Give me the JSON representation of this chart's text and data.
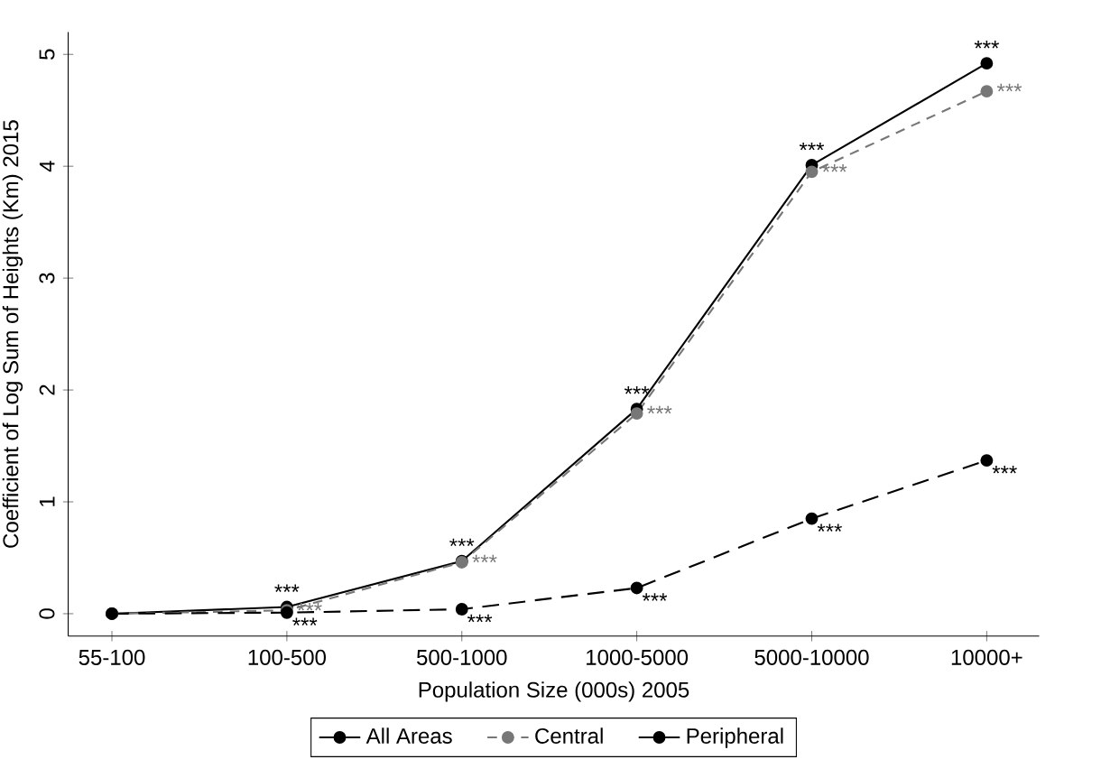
{
  "chart_data": {
    "type": "line",
    "xlabel": "Population Size (000s) 2005",
    "ylabel": "Coefficient of Log Sum of Heights (Km) 2015",
    "categories": [
      "55-100",
      "100-500",
      "500-1000",
      "1000-5000",
      "5000-10000",
      "10000+"
    ],
    "ylim": [
      -0.2,
      5.2
    ],
    "yticks": [
      0,
      1,
      2,
      3,
      4,
      5
    ],
    "grid": false,
    "legend": "bottom",
    "marker": "circle",
    "series": [
      {
        "name": "All Areas",
        "color": "#000000",
        "line_style": "solid",
        "values": [
          0,
          0.06,
          0.47,
          1.83,
          4.01,
          4.92
        ],
        "value_labels": [
          null,
          "***",
          "***",
          "***",
          "***",
          "***"
        ]
      },
      {
        "name": "Central",
        "color": "#777777",
        "line_style": "dashed",
        "values": [
          0,
          0.03,
          0.46,
          1.79,
          3.95,
          4.67
        ],
        "value_labels": [
          null,
          "***",
          "***",
          "***",
          "***",
          "***"
        ]
      },
      {
        "name": "Peripheral",
        "color": "#000000",
        "line_style": "dashed",
        "values": [
          0,
          0.01,
          0.04,
          0.23,
          0.85,
          1.37
        ],
        "value_labels": [
          null,
          "***",
          "***",
          "***",
          "***",
          "***"
        ]
      }
    ]
  }
}
